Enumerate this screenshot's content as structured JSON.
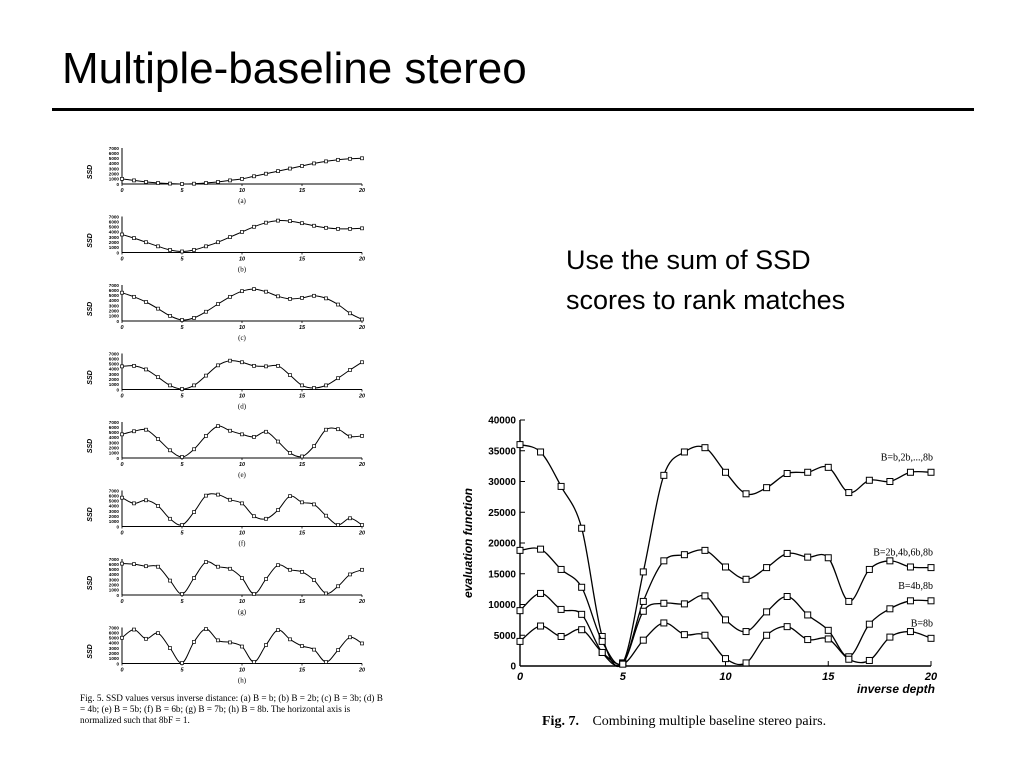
{
  "slide": {
    "title": "Multiple-baseline stereo",
    "text": "Use the sum of SSD scores to rank matches"
  },
  "figure5": {
    "ylabel": "SSD",
    "yticks": [
      "7000",
      "6000",
      "5000",
      "4000",
      "3000",
      "2000",
      "1000",
      "0"
    ],
    "xticks": [
      "0",
      "5",
      "10",
      "15",
      "20"
    ],
    "caption": "Fig. 5.   SSD values versus inverse distance: (a) B = b; (b) B = 2b; (c) B = 3b; (d) B = 4b; (e) B = 5b; (f) B = 6b; (g) B = 7b; (h) B = 8b. The horizontal axis is normalized such that 8bF = 1.",
    "panels": [
      "(a)",
      "(b)",
      "(c)",
      "(d)",
      "(e)",
      "(f)",
      "(g)",
      "(h)"
    ]
  },
  "figure7": {
    "caption_no": "Fig. 7.",
    "caption_text": "Combining multiple baseline stereo pairs.",
    "ylabel": "evaluation function",
    "xlabel": "inverse depth",
    "yticks": [
      "40000",
      "35000",
      "30000",
      "25000",
      "20000",
      "15000",
      "10000",
      "5000",
      "0"
    ],
    "xticks": [
      "0",
      "5",
      "10",
      "15",
      "20"
    ]
  },
  "chart_data": [
    {
      "type": "line",
      "title": "(a)",
      "x": [
        0,
        1,
        2,
        3,
        4,
        5,
        6,
        7,
        8,
        9,
        10,
        11,
        12,
        13,
        14,
        15,
        16,
        17,
        18,
        19,
        20
      ],
      "series": [
        {
          "values": [
            1000,
            700,
            400,
            200,
            80,
            0,
            60,
            200,
            400,
            700,
            1000,
            1500,
            2000,
            2500,
            3000,
            3500,
            4000,
            4400,
            4700,
            4900,
            5000
          ]
        }
      ],
      "ylabel": "SSD",
      "xlim": [
        0,
        20
      ],
      "ylim": [
        0,
        7000
      ]
    },
    {
      "type": "line",
      "title": "(b)",
      "x": [
        0,
        1,
        2,
        3,
        4,
        5,
        6,
        7,
        8,
        9,
        10,
        11,
        12,
        13,
        14,
        15,
        16,
        17,
        18,
        19,
        20
      ],
      "series": [
        {
          "values": [
            3500,
            2800,
            2000,
            1200,
            500,
            200,
            500,
            1200,
            2000,
            3000,
            4000,
            5000,
            5800,
            6200,
            6100,
            5700,
            5200,
            4800,
            4600,
            4600,
            4700
          ]
        }
      ],
      "ylabel": "SSD",
      "xlim": [
        0,
        20
      ],
      "ylim": [
        0,
        7000
      ]
    },
    {
      "type": "line",
      "title": "(c)",
      "x": [
        0,
        1,
        2,
        3,
        4,
        5,
        6,
        7,
        8,
        9,
        10,
        11,
        12,
        13,
        14,
        15,
        16,
        17,
        18,
        19,
        20
      ],
      "series": [
        {
          "values": [
            5500,
            4700,
            3700,
            2400,
            1000,
            200,
            600,
            1800,
            3300,
            4700,
            5800,
            6200,
            5700,
            4800,
            4300,
            4500,
            4900,
            4400,
            3200,
            1500,
            300
          ]
        }
      ],
      "ylabel": "SSD",
      "xlim": [
        0,
        20
      ],
      "ylim": [
        0,
        7000
      ]
    },
    {
      "type": "line",
      "title": "(d)",
      "x": [
        0,
        1,
        2,
        3,
        4,
        5,
        6,
        7,
        8,
        9,
        10,
        11,
        12,
        13,
        14,
        15,
        16,
        17,
        18,
        19,
        20
      ],
      "series": [
        {
          "values": [
            4500,
            4600,
            3900,
            2400,
            800,
            100,
            800,
            2700,
            4700,
            5600,
            5300,
            4600,
            4500,
            4600,
            2800,
            800,
            300,
            800,
            2200,
            3800,
            5300
          ]
        }
      ],
      "ylabel": "SSD",
      "xlim": [
        0,
        20
      ],
      "ylim": [
        0,
        7000
      ]
    },
    {
      "type": "line",
      "title": "(e)",
      "x": [
        0,
        1,
        2,
        3,
        4,
        5,
        6,
        7,
        8,
        9,
        10,
        11,
        12,
        13,
        14,
        15,
        16,
        17,
        18,
        19,
        20
      ],
      "series": [
        {
          "values": [
            4600,
            5200,
            5500,
            3700,
            1500,
            200,
            1700,
            4300,
            6200,
            5300,
            4600,
            4100,
            5100,
            3200,
            1000,
            300,
            2300,
            5500,
            5600,
            4200,
            4300
          ]
        }
      ],
      "ylabel": "SSD",
      "xlim": [
        0,
        20
      ],
      "ylim": [
        0,
        7000
      ]
    },
    {
      "type": "line",
      "title": "(f)",
      "x": [
        0,
        1,
        2,
        3,
        4,
        5,
        6,
        7,
        8,
        9,
        10,
        11,
        12,
        13,
        14,
        15,
        16,
        17,
        18,
        19,
        20
      ],
      "series": [
        {
          "values": [
            5600,
            4500,
            5100,
            4000,
            1500,
            300,
            2800,
            6000,
            6200,
            5200,
            4500,
            2000,
            1500,
            3200,
            5900,
            4700,
            4300,
            2100,
            300,
            1600,
            300
          ]
        }
      ],
      "ylabel": "SSD",
      "xlim": [
        0,
        20
      ],
      "ylim": [
        0,
        7000
      ]
    },
    {
      "type": "line",
      "title": "(g)",
      "x": [
        0,
        1,
        2,
        3,
        4,
        5,
        6,
        7,
        8,
        9,
        10,
        11,
        12,
        13,
        14,
        15,
        16,
        17,
        18,
        19,
        20
      ],
      "series": [
        {
          "values": [
            6100,
            6000,
            5600,
            5500,
            2800,
            200,
            3300,
            6400,
            5500,
            5100,
            3300,
            200,
            3100,
            5800,
            4900,
            4500,
            2900,
            300,
            1700,
            4000,
            4900
          ]
        }
      ],
      "ylabel": "SSD",
      "xlim": [
        0,
        20
      ],
      "ylim": [
        0,
        7000
      ]
    },
    {
      "type": "line",
      "title": "(h)",
      "x": [
        0,
        1,
        2,
        3,
        4,
        5,
        6,
        7,
        8,
        9,
        10,
        11,
        12,
        13,
        14,
        15,
        16,
        17,
        18,
        19,
        20
      ],
      "series": [
        {
          "values": [
            5000,
            6600,
            4800,
            5900,
            3000,
            100,
            4200,
            6700,
            4500,
            4100,
            3300,
            300,
            3600,
            6500,
            4700,
            3400,
            2700,
            300,
            2600,
            5100,
            3900
          ]
        }
      ],
      "ylabel": "SSD",
      "xlim": [
        0,
        20
      ],
      "ylim": [
        0,
        7000
      ]
    },
    {
      "type": "line",
      "title": "Fig. 7. Combining multiple baseline stereo pairs.",
      "xlabel": "inverse depth",
      "ylabel": "evaluation function",
      "xlim": [
        0,
        20
      ],
      "ylim": [
        0,
        40000
      ],
      "x": [
        0,
        1,
        2,
        3,
        4,
        5,
        6,
        7,
        8,
        9,
        10,
        11,
        12,
        13,
        14,
        15,
        16,
        17,
        18,
        19,
        20
      ],
      "series": [
        {
          "name": "B=b,2b,...,8b",
          "values": [
            36000,
            34800,
            29200,
            22400,
            4800,
            500,
            15300,
            31000,
            34800,
            35500,
            31500,
            28000,
            29000,
            31300,
            31500,
            32300,
            28200,
            30200,
            30000,
            31500,
            31500
          ]
        },
        {
          "name": "B=2b,4b,6b,8b",
          "values": [
            18800,
            19000,
            15700,
            12800,
            4000,
            500,
            10500,
            17100,
            18100,
            18800,
            16100,
            14100,
            16000,
            18300,
            17700,
            17600,
            10500,
            15700,
            17100,
            16100,
            16000
          ]
        },
        {
          "name": "B=4b,8b",
          "values": [
            9000,
            11800,
            9200,
            8400,
            2200,
            400,
            8900,
            10200,
            10100,
            11400,
            7500,
            5600,
            8800,
            11300,
            8300,
            5800,
            1500,
            6800,
            9300,
            10600,
            10600
          ]
        },
        {
          "name": "B=8b",
          "values": [
            4000,
            6500,
            4800,
            5900,
            2200,
            300,
            4200,
            7000,
            5100,
            5000,
            1200,
            500,
            5000,
            6400,
            4300,
            4400,
            1100,
            900,
            4700,
            5600,
            4500
          ]
        }
      ]
    }
  ]
}
